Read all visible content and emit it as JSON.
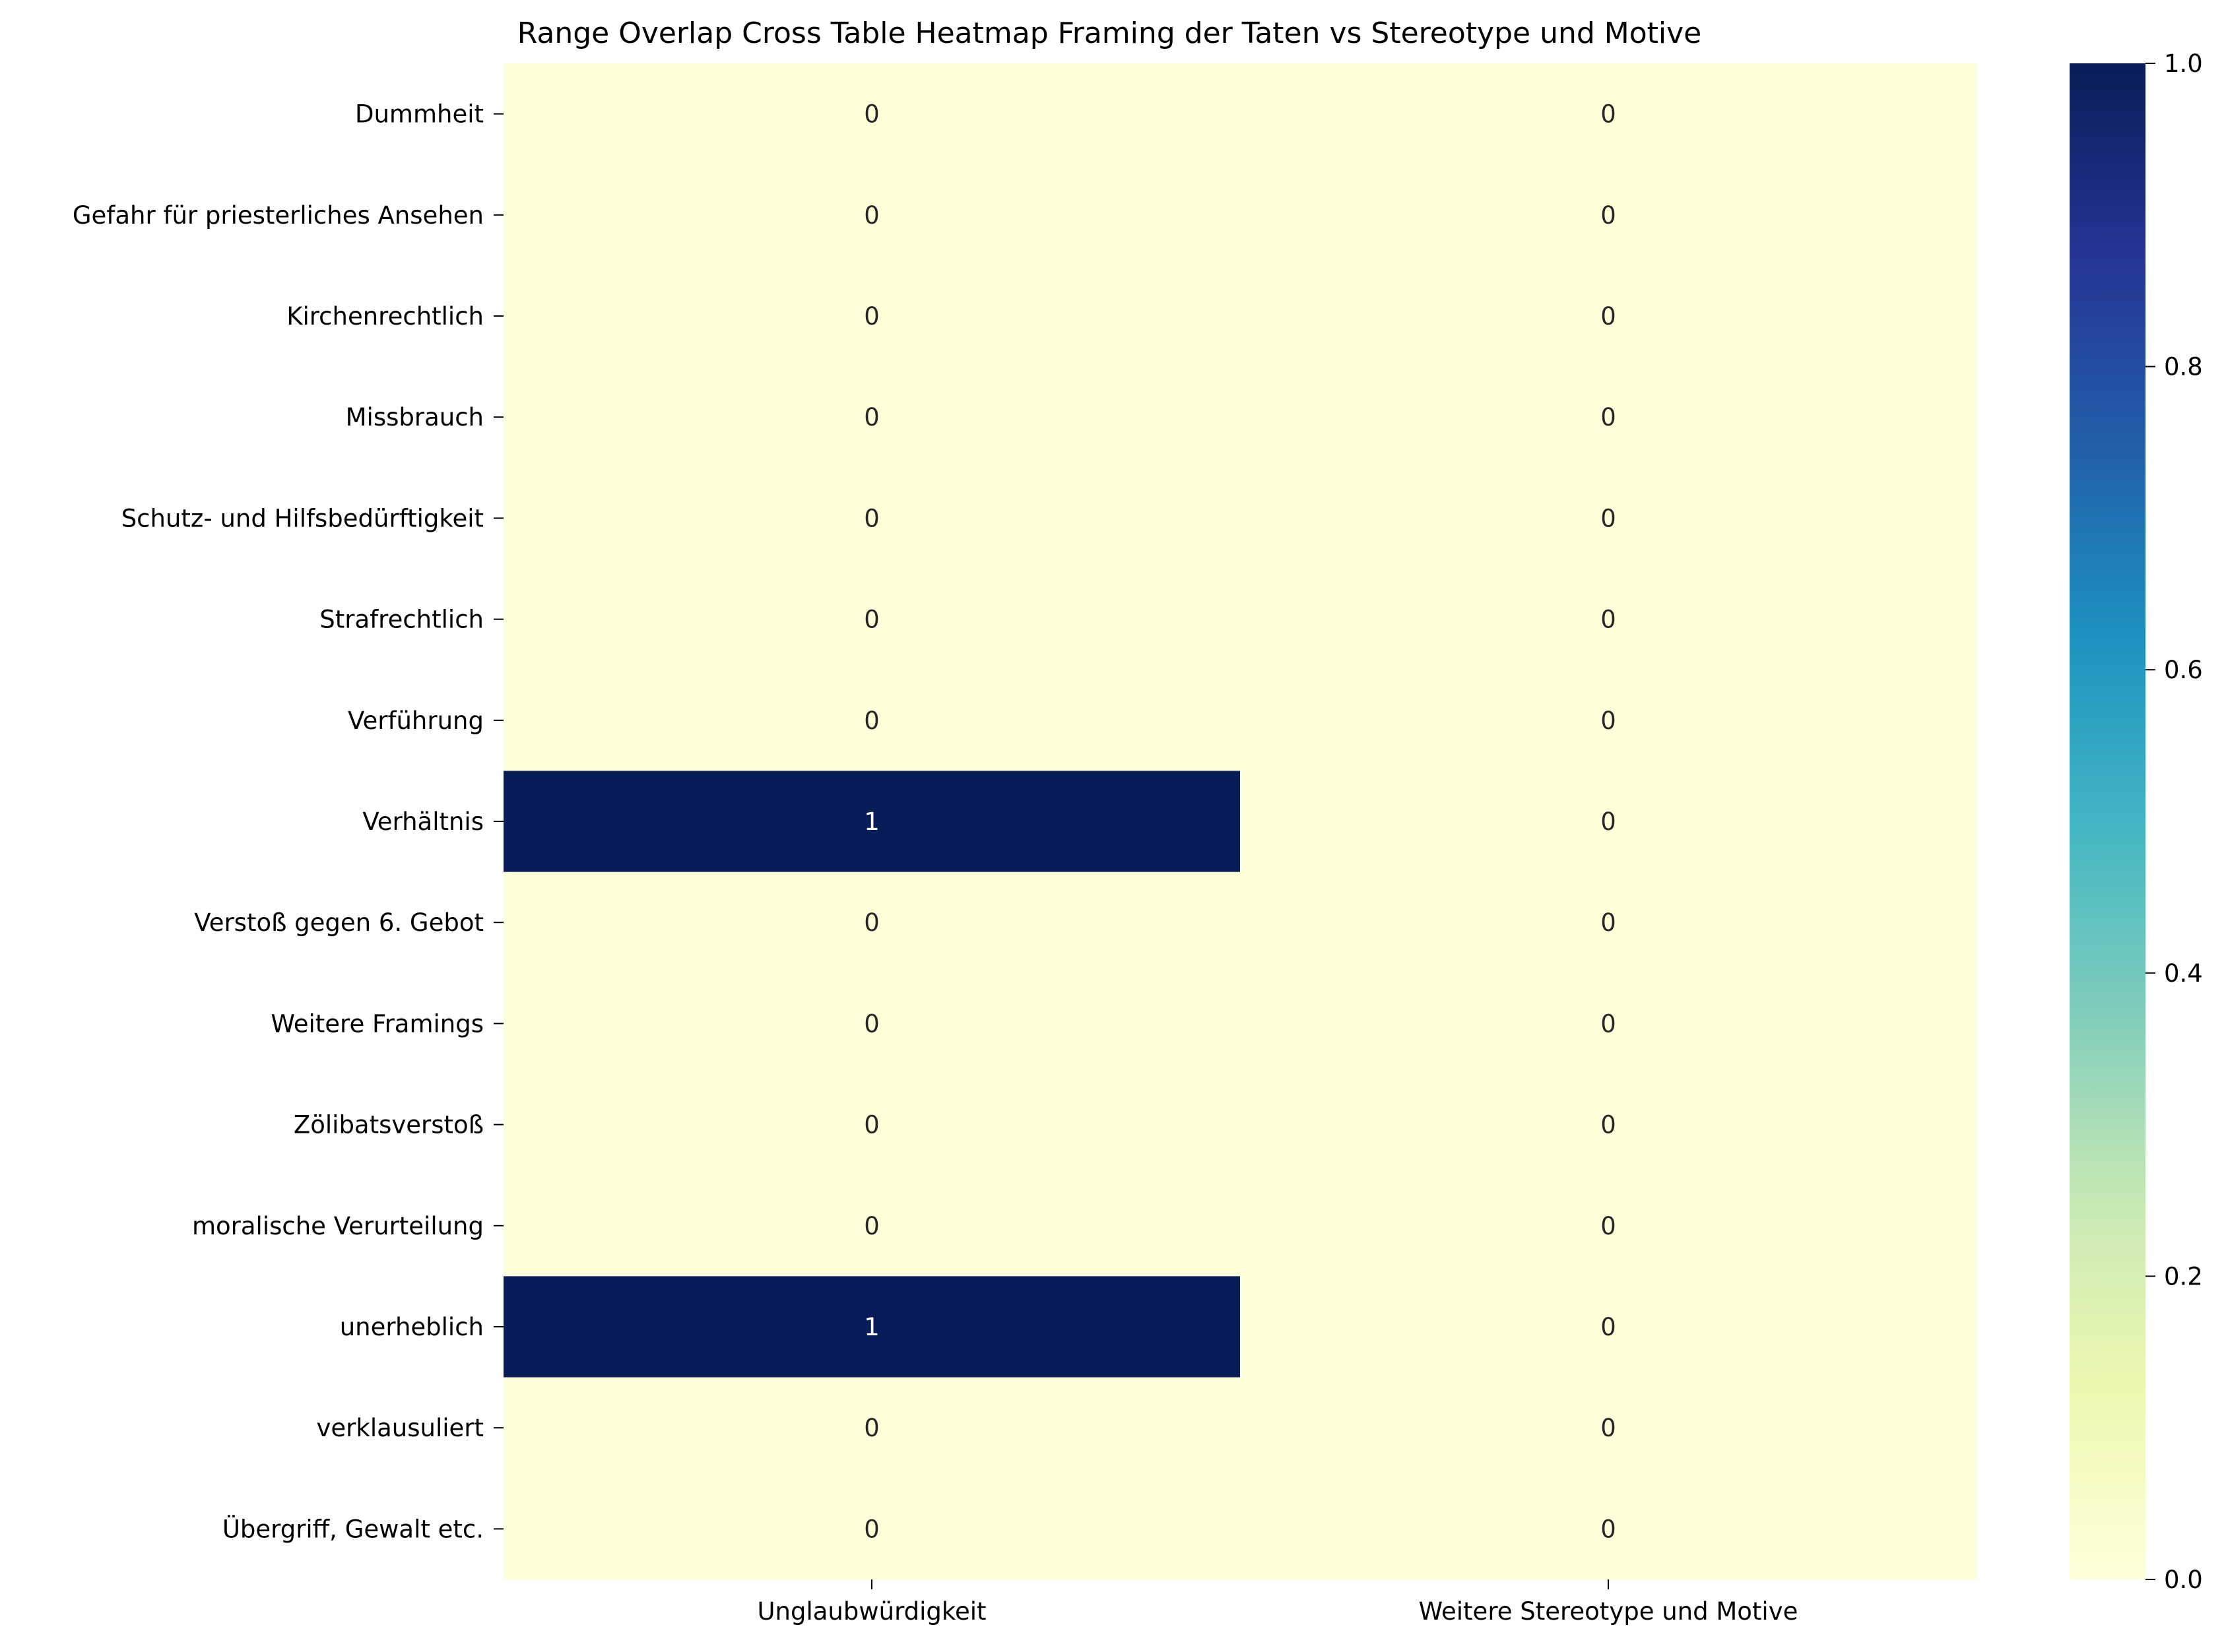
{
  "chart_data": {
    "type": "heatmap",
    "title": "Range Overlap Cross Table Heatmap Framing der Taten vs Stereotype und Motive",
    "xlabel": "",
    "ylabel": "",
    "x_categories": [
      "Unglaubwürdigkeit",
      "Weitere Stereotype und Motive"
    ],
    "y_categories": [
      "Dummheit",
      "Gefahr für priesterliches Ansehen",
      "Kirchenrechtlich",
      "Missbrauch",
      "Schutz- und Hilfsbedürftigkeit",
      "Strafrechtlich",
      "Verführung",
      "Verhältnis",
      "Verstoß gegen 6. Gebot",
      "Weitere Framings",
      "Zölibatsverstoß",
      "moralische Verurteilung",
      "unerheblich",
      "verklausuliert",
      "Übergriff, Gewalt etc."
    ],
    "values": [
      [
        0,
        0
      ],
      [
        0,
        0
      ],
      [
        0,
        0
      ],
      [
        0,
        0
      ],
      [
        0,
        0
      ],
      [
        0,
        0
      ],
      [
        0,
        0
      ],
      [
        1,
        0
      ],
      [
        0,
        0
      ],
      [
        0,
        0
      ],
      [
        0,
        0
      ],
      [
        0,
        0
      ],
      [
        1,
        0
      ],
      [
        0,
        0
      ],
      [
        0,
        0
      ]
    ],
    "annotations": true,
    "colormap": "YlGnBu",
    "colorbar": {
      "range": [
        0.0,
        1.0
      ],
      "ticks": [
        "0.0",
        "0.2",
        "0.4",
        "0.6",
        "0.8",
        "1.0"
      ]
    },
    "colors": {
      "low": "#ffffd9",
      "high": "#081d58",
      "annotation_light": "#ffffff",
      "annotation_dark": "#262626"
    }
  }
}
